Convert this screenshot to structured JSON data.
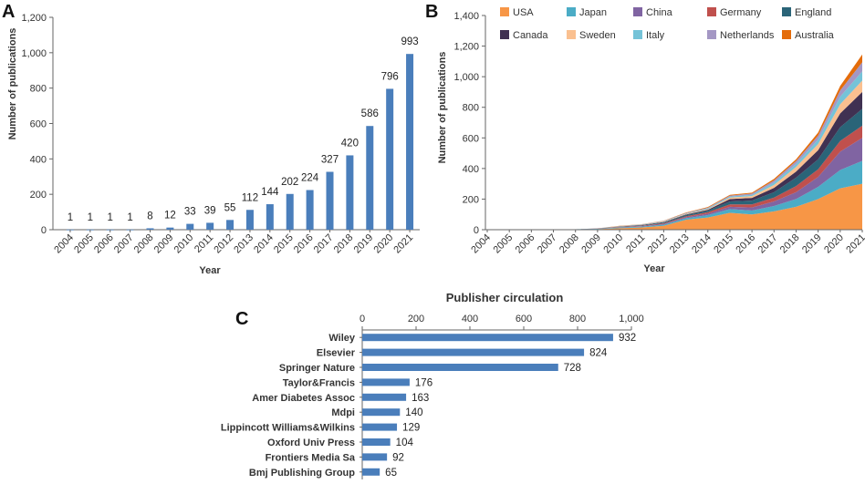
{
  "panels": {
    "a": "A",
    "b": "B",
    "c": "C"
  },
  "chart_data": [
    {
      "type": "bar",
      "panel": "A",
      "title": "",
      "xlabel": "Year",
      "ylabel": "Number of publications",
      "ylim": [
        0,
        1200
      ],
      "yticks": [
        "0",
        "200",
        "400",
        "600",
        "800",
        "1,000",
        "1,200"
      ],
      "categories": [
        "2004",
        "2005",
        "2006",
        "2007",
        "2008",
        "2009",
        "2010",
        "2011",
        "2012",
        "2013",
        "2014",
        "2015",
        "2016",
        "2017",
        "2018",
        "2019",
        "2020",
        "2021"
      ],
      "values": [
        1,
        1,
        1,
        1,
        8,
        12,
        33,
        39,
        55,
        112,
        144,
        202,
        224,
        327,
        420,
        586,
        796,
        993
      ],
      "color": "#4a7ebb"
    },
    {
      "type": "area",
      "panel": "B",
      "title": "",
      "xlabel": "Year",
      "ylabel": "Number of publications",
      "ylim": [
        0,
        1400
      ],
      "yticks": [
        "0",
        "200",
        "400",
        "600",
        "800",
        "1,000",
        "1,200",
        "1,400"
      ],
      "categories": [
        "2004",
        "2005",
        "2006",
        "2007",
        "2008",
        "2009",
        "2010",
        "2011",
        "2012",
        "2013",
        "2014",
        "2015",
        "2016",
        "2017",
        "2018",
        "2019",
        "2020",
        "2021"
      ],
      "series": [
        {
          "name": "USA",
          "color": "#f79646",
          "values": [
            0,
            0,
            0,
            0,
            2,
            4,
            10,
            15,
            25,
            65,
            80,
            110,
            100,
            120,
            150,
            200,
            270,
            300
          ]
        },
        {
          "name": "Japan",
          "color": "#4bacc6",
          "values": [
            0,
            0,
            0,
            0,
            1,
            2,
            4,
            5,
            8,
            10,
            15,
            25,
            25,
            35,
            50,
            80,
            120,
            150
          ]
        },
        {
          "name": "China",
          "color": "#8064a2",
          "values": [
            0,
            0,
            0,
            0,
            0,
            1,
            2,
            3,
            4,
            6,
            10,
            15,
            20,
            30,
            45,
            65,
            120,
            150
          ]
        },
        {
          "name": "Germany",
          "color": "#c0504d",
          "values": [
            0,
            0,
            0,
            0,
            0,
            1,
            2,
            3,
            5,
            6,
            10,
            15,
            20,
            25,
            40,
            50,
            70,
            80
          ]
        },
        {
          "name": "England",
          "color": "#2a6478",
          "values": [
            0,
            0,
            0,
            0,
            0,
            1,
            2,
            3,
            5,
            8,
            10,
            20,
            25,
            35,
            55,
            65,
            90,
            110
          ]
        },
        {
          "name": "Canada",
          "color": "#403152",
          "values": [
            0,
            0,
            0,
            0,
            0,
            0,
            1,
            2,
            3,
            4,
            5,
            15,
            18,
            28,
            40,
            60,
            90,
            110
          ]
        },
        {
          "name": "Sweden",
          "color": "#fac090",
          "values": [
            0,
            0,
            0,
            0,
            0,
            0,
            1,
            2,
            3,
            4,
            5,
            10,
            12,
            20,
            30,
            40,
            60,
            75
          ]
        },
        {
          "name": "Italy",
          "color": "#75c3d8",
          "values": [
            0,
            0,
            0,
            0,
            0,
            0,
            1,
            1,
            2,
            3,
            5,
            7,
            8,
            15,
            20,
            30,
            50,
            60
          ]
        },
        {
          "name": "Netherlands",
          "color": "#a497c4",
          "values": [
            0,
            0,
            0,
            0,
            0,
            0,
            1,
            1,
            2,
            3,
            4,
            6,
            8,
            14,
            18,
            25,
            40,
            60
          ]
        },
        {
          "name": "Australia",
          "color": "#e46c0a",
          "values": [
            0,
            0,
            0,
            0,
            0,
            0,
            1,
            1,
            2,
            3,
            4,
            5,
            6,
            10,
            12,
            20,
            30,
            50
          ]
        }
      ]
    },
    {
      "type": "bar",
      "orientation": "horizontal",
      "panel": "C",
      "title": "Publisher circulation",
      "xlim": [
        0,
        1000
      ],
      "xticks": [
        "0",
        "200",
        "400",
        "600",
        "800",
        "1,000"
      ],
      "categories": [
        "Wiley",
        "Elsevier",
        "Springer Nature",
        "Taylor&Francis",
        "Amer Diabetes Assoc",
        "Mdpi",
        "Lippincott Williams&Wilkins",
        "Oxford Univ Press",
        "Frontiers Media Sa",
        "Bmj Publishing Group"
      ],
      "values": [
        932,
        824,
        728,
        176,
        163,
        140,
        129,
        104,
        92,
        65
      ],
      "color": "#4a7ebb"
    }
  ]
}
